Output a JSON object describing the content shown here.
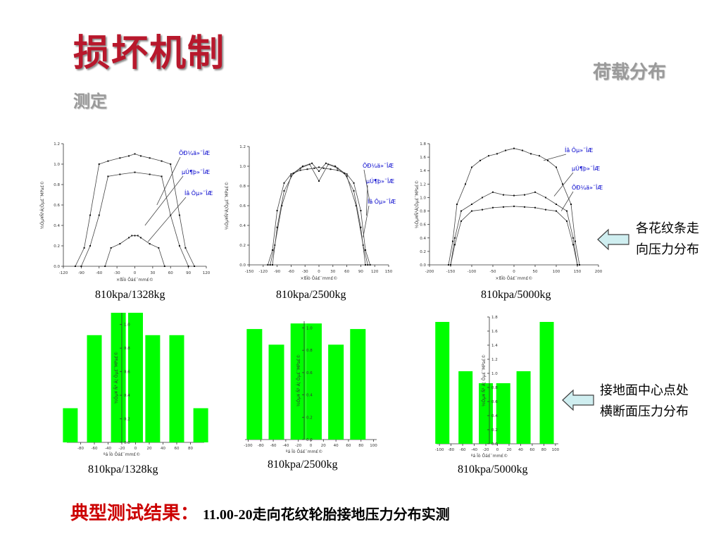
{
  "page": {
    "title": "损坏机制",
    "subtitle_a": "荷载分布",
    "subtitle_b": "测定"
  },
  "notes": [
    {
      "line1": "各花纹条走",
      "line2": "向压力分布"
    },
    {
      "line1": "接地面中心点处",
      "line2": "横断面压力分布"
    }
  ],
  "footer": {
    "label": "典型测试结果：",
    "text": "11.00-20走向花纹轮胎接地压力分布实测"
  },
  "colors": {
    "title": "#b8182c",
    "subtitle": "#9a9a9a",
    "bar": "#00ff00",
    "legend_text": "#0000cc",
    "footer_label": "#cc0000",
    "arrow_fill": "#cfeef0"
  },
  "chart_data": [
    {
      "type": "line",
      "caption": "810kpa/1328kg",
      "ylabel": "½Óµ¥Ñ¹Á¦Öµ£¨MPa£©",
      "xlabel": "×ßÏò Ôá£¨mm£©",
      "xlim": [
        -120,
        120
      ],
      "ylim": [
        0,
        1.2
      ],
      "xticks": [
        -120,
        -90,
        -60,
        -30,
        0,
        30,
        60,
        90,
        120
      ],
      "yticks": [
        0.0,
        0.2,
        0.4,
        0.6,
        0.8,
        1.0,
        1.2
      ],
      "series": [
        {
          "name": "ÕÐ¼ä»¨ÎÆ",
          "x": [
            -100,
            -85,
            -75,
            -60,
            -45,
            -25,
            -10,
            0,
            10,
            25,
            45,
            60,
            75,
            85,
            100
          ],
          "y": [
            0,
            0.18,
            0.5,
            1.0,
            1.03,
            1.06,
            1.08,
            1.1,
            1.08,
            1.06,
            1.03,
            1.0,
            0.5,
            0.18,
            0
          ]
        },
        {
          "name": "µÚ¶þ»¨ÎÆ",
          "x": [
            -90,
            -75,
            -60,
            -45,
            -25,
            0,
            25,
            45,
            60,
            75,
            90
          ],
          "y": [
            0,
            0.2,
            0.5,
            0.88,
            0.9,
            0.92,
            0.9,
            0.88,
            0.5,
            0.2,
            0
          ]
        },
        {
          "name": "Íâ Ôµ»¨ÎÆ",
          "x": [
            -50,
            -40,
            -25,
            -10,
            -5,
            0,
            5,
            10,
            25,
            40,
            50
          ],
          "y": [
            0,
            0.18,
            0.22,
            0.28,
            0.3,
            0.3,
            0.3,
            0.28,
            0.22,
            0.18,
            0
          ]
        }
      ],
      "legend_anchor": [
        [
          37,
          0.6
        ],
        [
          17,
          0.4
        ],
        [
          22,
          0.24
        ]
      ]
    },
    {
      "type": "line",
      "caption": "810kpa/2500kg",
      "ylabel": "½Óµ¥Ñ¹Á¦Öµ£¨MPa£©",
      "xlabel": "×ßÏò Ôá£¨mm£©",
      "xlim": [
        -150,
        150
      ],
      "ylim": [
        0,
        1.2
      ],
      "xticks": [
        -150,
        -120,
        -90,
        -60,
        -30,
        0,
        30,
        60,
        90,
        120,
        150
      ],
      "yticks": [
        0.0,
        0.2,
        0.4,
        0.6,
        0.8,
        1.0,
        1.2
      ],
      "series": [
        {
          "name": "ÕÐ¼ä»¨ÎÆ",
          "x": [
            -110,
            -100,
            -90,
            -75,
            -60,
            -40,
            -25,
            -10,
            0,
            10,
            25,
            40,
            60,
            75,
            90,
            100,
            110
          ],
          "y": [
            0,
            0.15,
            0.55,
            0.83,
            0.92,
            0.96,
            0.97,
            0.98,
            0.99,
            0.98,
            0.97,
            0.96,
            0.92,
            0.83,
            0.55,
            0.15,
            0
          ]
        },
        {
          "name": "µÚ¶þ»¨ÎÆ",
          "x": [
            -105,
            -95,
            -80,
            -60,
            -40,
            -20,
            0,
            20,
            40,
            60,
            80,
            95,
            105
          ],
          "y": [
            0,
            0.2,
            0.6,
            0.9,
            0.98,
            1.02,
            0.85,
            1.02,
            0.98,
            0.9,
            0.6,
            0.2,
            0
          ]
        },
        {
          "name": "Íâ Ôµ»¨ÎÆ",
          "x": [
            -100,
            -90,
            -75,
            -55,
            -35,
            -15,
            0,
            15,
            35,
            55,
            75,
            90,
            100
          ],
          "y": [
            0,
            0.38,
            0.75,
            0.93,
            1.0,
            1.03,
            0.95,
            1.03,
            1.0,
            0.93,
            0.75,
            0.38,
            0
          ]
        }
      ],
      "legend_anchor": [
        [
          110,
          0.62
        ],
        [
          102,
          0.5
        ],
        [
          95,
          0.28
        ]
      ]
    },
    {
      "type": "line",
      "caption": "810kpa/5000kg",
      "ylabel": "½Óµ¥Ñ¹Á¦Öµ£¨MPa£©",
      "xlabel": "×ßÏò Ôá£¨mm£©",
      "xlim": [
        -200,
        200
      ],
      "ylim": [
        0,
        1.8
      ],
      "xticks": [
        -200,
        -150,
        -100,
        -50,
        0,
        50,
        100,
        150,
        200
      ],
      "yticks": [
        0.0,
        0.2,
        0.4,
        0.6,
        0.8,
        1.0,
        1.2,
        1.4,
        1.6,
        1.8
      ],
      "series": [
        {
          "name": "Íâ Ôµ»¨ÎÆ",
          "x": [
            -155,
            -145,
            -135,
            -115,
            -100,
            -80,
            -60,
            -40,
            -20,
            0,
            20,
            40,
            60,
            80,
            100,
            115,
            135,
            145,
            155
          ],
          "y": [
            0,
            0.35,
            0.9,
            1.2,
            1.45,
            1.55,
            1.62,
            1.65,
            1.7,
            1.73,
            1.7,
            1.65,
            1.62,
            1.55,
            1.45,
            1.2,
            0.9,
            0.35,
            0
          ]
        },
        {
          "name": "µÚ¶þ»¨ÎÆ",
          "x": [
            -150,
            -140,
            -125,
            -100,
            -75,
            -50,
            -25,
            0,
            25,
            50,
            75,
            100,
            125,
            140,
            150
          ],
          "y": [
            0,
            0.4,
            0.8,
            0.9,
            1.0,
            1.08,
            1.04,
            1.03,
            1.04,
            1.08,
            1.0,
            0.9,
            0.8,
            0.4,
            0
          ]
        },
        {
          "name": "ÕÐ¼ä»¨ÎÆ",
          "x": [
            -150,
            -140,
            -125,
            -100,
            -75,
            -50,
            -25,
            0,
            25,
            50,
            75,
            100,
            125,
            140,
            150
          ],
          "y": [
            0,
            0.3,
            0.65,
            0.8,
            0.82,
            0.85,
            0.86,
            0.87,
            0.86,
            0.85,
            0.82,
            0.8,
            0.65,
            0.3,
            0
          ]
        }
      ],
      "legend_anchor": [
        [
          70,
          1.55
        ],
        [
          95,
          1.02
        ],
        [
          112,
          0.8
        ]
      ]
    },
    {
      "type": "bar",
      "caption": "810kpa/1328kg",
      "ylabel": "½Óµ¥ Ñ¹ Á¦ Öµ£¨MPa£©",
      "xlabel": "ºá Ïò  Ôá£¨mm£©",
      "x": [
        -95,
        -60,
        -25,
        0,
        25,
        60,
        95
      ],
      "values": [
        0.29,
        0.91,
        1.1,
        1.1,
        0.91,
        0.91,
        0.29
      ],
      "xlim": [
        -100,
        100
      ],
      "ylim": [
        0,
        1.1
      ],
      "xticks": [
        -80,
        -60,
        -40,
        -20,
        0,
        20,
        40,
        60,
        80
      ],
      "yticks": [
        0.0,
        0.2,
        0.4,
        0.6,
        0.8,
        1.0
      ]
    },
    {
      "type": "bar",
      "caption": "810kpa/2500kg",
      "ylabel": "½Óµ¥ Ñ¹ Á¦ Öµ£¨MPa£©",
      "xlabel": "ºá Ïò  Ôá£¨mm£©",
      "x": [
        -90,
        -55,
        -20,
        5,
        40,
        75
      ],
      "values": [
        0.99,
        0.85,
        1.04,
        1.04,
        0.85,
        0.99
      ],
      "xlim": [
        -105,
        105
      ],
      "ylim": [
        0,
        1.06
      ],
      "xticks": [
        -100,
        -80,
        -60,
        -40,
        -20,
        0,
        20,
        40,
        60,
        80,
        100
      ],
      "yticks": [
        0.0,
        0.2,
        0.4,
        0.6,
        0.8,
        1.0
      ]
    },
    {
      "type": "bar",
      "caption": "810kpa/5000kg",
      "ylabel": "½Óµ¥ Ñ¹ Á¦ Öµ£¨MPa£©",
      "xlabel": "ºá Ïò  Ôá£¨mm£©",
      "x": [
        -95,
        -55,
        -20,
        10,
        45,
        85
      ],
      "values": [
        1.73,
        1.03,
        0.86,
        0.86,
        1.03,
        1.73
      ],
      "xlim": [
        -105,
        105
      ],
      "ylim": [
        0,
        1.8
      ],
      "xticks": [
        -100,
        -80,
        -60,
        -40,
        -20,
        0,
        20,
        40,
        60,
        80,
        100
      ],
      "yticks": [
        0.0,
        0.2,
        0.4,
        0.6,
        0.8,
        1.0,
        1.2,
        1.4,
        1.6,
        1.8
      ]
    }
  ]
}
